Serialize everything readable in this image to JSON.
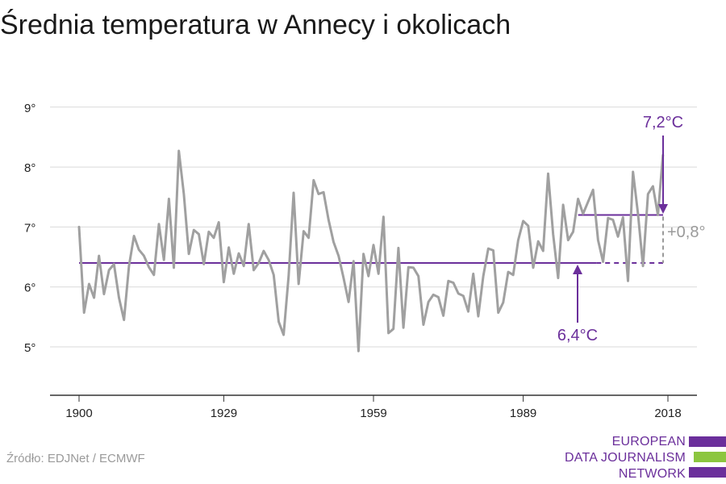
{
  "title": "Średnia temperatura w Annecy i okolicach",
  "source": "Źródło: EDJNet / ECMWF",
  "logo": {
    "lines": [
      "EUROPEAN",
      "DATA JOURNALISM",
      "NETWORK"
    ],
    "colors": [
      "#6b2f9b",
      "#8cc63f",
      "#6b2f9b"
    ]
  },
  "colors": {
    "series": "#a0a0a0",
    "average": "#6b2f9b",
    "grid": "#d9d9d9",
    "axis": "#333333",
    "diff": "#9a9a9a"
  },
  "chart_data": {
    "type": "line",
    "title": "Średnia temperatura w Annecy i okolicach",
    "xlabel": "",
    "ylabel": "",
    "xlim": [
      1900,
      2018
    ],
    "ylim": [
      4.2,
      9.2
    ],
    "x_ticks": [
      1900,
      1929,
      1959,
      1989,
      2018
    ],
    "x_tick_labels": [
      "1900",
      "1929",
      "1959",
      "1989",
      "2018"
    ],
    "y_ticks": [
      5,
      6,
      7,
      8,
      9
    ],
    "y_tick_labels": [
      "5°",
      "6°",
      "7°",
      "8°",
      "9°"
    ],
    "grid": true,
    "series": [
      {
        "x_start": 1900,
        "x_end": 2018,
        "values": [
          7.0,
          5.57,
          6.05,
          5.82,
          6.52,
          5.88,
          6.28,
          6.38,
          5.82,
          5.45,
          6.35,
          6.85,
          6.62,
          6.52,
          6.33,
          6.2,
          7.05,
          6.45,
          7.47,
          6.32,
          8.27,
          7.55,
          6.55,
          6.95,
          6.88,
          6.38,
          6.92,
          6.82,
          7.08,
          6.08,
          6.66,
          6.22,
          6.56,
          6.35,
          7.05,
          6.28,
          6.4,
          6.6,
          6.45,
          6.2,
          5.42,
          5.2,
          6.18,
          7.57,
          6.05,
          6.93,
          6.82,
          7.78,
          7.55,
          7.58,
          7.12,
          6.75,
          6.52,
          6.15,
          5.75,
          6.43,
          4.93,
          6.55,
          6.18,
          6.7,
          6.22,
          7.17,
          5.23,
          5.3,
          6.65,
          5.32,
          6.33,
          6.32,
          6.18,
          5.37,
          5.75,
          5.87,
          5.83,
          5.52,
          6.1,
          6.07,
          5.89,
          5.85,
          5.59,
          6.22,
          5.51,
          6.18,
          6.64,
          6.61,
          5.57,
          5.74,
          6.25,
          6.2,
          6.78,
          7.1,
          7.02,
          6.32,
          6.76,
          6.6,
          7.89,
          6.88,
          6.15,
          7.37,
          6.78,
          6.92,
          7.47,
          7.22,
          7.42,
          7.62,
          6.78,
          6.42,
          7.15,
          7.12,
          6.84,
          7.16,
          6.1,
          7.92,
          7.22,
          6.35,
          7.55,
          7.68,
          7.2,
          8.2
        ]
      }
    ],
    "reference_lines": [
      {
        "label": "6,4°C",
        "value": 6.4,
        "x_from": 1900,
        "x_to": 2018,
        "dashed_from": 2003
      },
      {
        "label": "7,2°C",
        "value": 7.2,
        "x_from": 2000,
        "x_to": 2018
      }
    ],
    "difference_label": "+0,8°"
  }
}
